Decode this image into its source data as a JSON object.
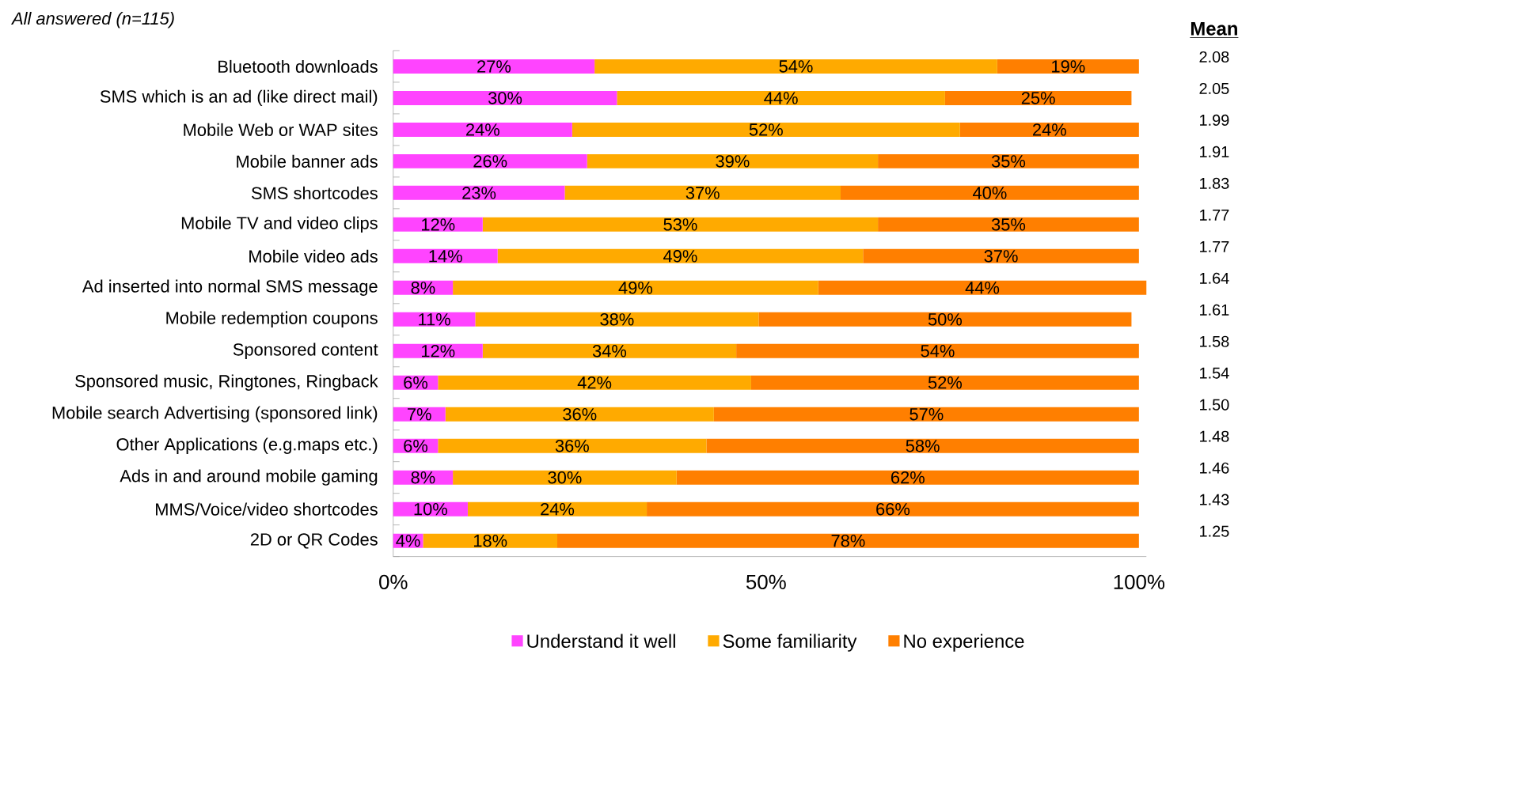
{
  "chart_data": {
    "type": "bar",
    "orientation": "horizontal",
    "stacked": true,
    "subtitle": "All answered (n=115)",
    "categories": [
      "Bluetooth downloads",
      "SMS which is an ad (like direct mail)",
      "Mobile Web or WAP sites",
      "Mobile banner ads",
      "SMS shortcodes",
      "Mobile TV and video clips",
      "Mobile video ads",
      "Ad inserted into normal SMS message",
      "Mobile redemption coupons",
      "Sponsored content",
      "Sponsored music, Ringtones, Ringback",
      "Mobile search Advertising (sponsored link)",
      "Other Applications (e.g.maps etc.)",
      "Ads in and around mobile gaming",
      "MMS/Voice/video shortcodes",
      "2D or QR Codes"
    ],
    "series": [
      {
        "name": "Understand it well",
        "color": "#ff44ff",
        "values": [
          27,
          30,
          24,
          26,
          23,
          12,
          14,
          8,
          11,
          12,
          6,
          7,
          6,
          8,
          10,
          4
        ],
        "value_labels": [
          "27%",
          "30%",
          "24%",
          "26%",
          "23%",
          "12%",
          "14%",
          "8%",
          "11%",
          "12%",
          "6%",
          "7%",
          "6%",
          "8%",
          "10%",
          "4%"
        ]
      },
      {
        "name": "Some familiarity",
        "color": "#ffaa00",
        "values": [
          54,
          44,
          52,
          39,
          37,
          53,
          49,
          49,
          38,
          34,
          42,
          36,
          36,
          30,
          24,
          18
        ],
        "value_labels": [
          "54%",
          "44%",
          "52%",
          "39%",
          "37%",
          "53%",
          "49%",
          "49%",
          "38%",
          "34%",
          "42%",
          "36%",
          "36%",
          "30%",
          "24%",
          "18%"
        ]
      },
      {
        "name": "No experience",
        "color": "#ff7f00",
        "values": [
          19,
          25,
          24,
          35,
          40,
          35,
          37,
          44,
          50,
          54,
          52,
          57,
          58,
          62,
          66,
          78
        ],
        "value_labels": [
          "19%",
          "25%",
          "24%",
          "35%",
          "40%",
          "35%",
          "37%",
          "44%",
          "50%",
          "54%",
          "52%",
          "57%",
          "58%",
          "62%",
          "66%",
          "78%"
        ]
      }
    ],
    "xlim": [
      0,
      101
    ],
    "xticks": [
      {
        "value": 0,
        "label": "0%"
      },
      {
        "value": 50,
        "label": "50%"
      },
      {
        "value": 100,
        "label": "100%"
      }
    ],
    "annotations": [
      "Mean",
      "2.08",
      "2.05",
      "1.99",
      "1.91",
      "1.83",
      "1.77",
      "1.77",
      "1.64",
      "1.61",
      "1.58",
      "1.54",
      "1.50",
      "1.48",
      "1.46",
      "1.43",
      "1.25"
    ],
    "legend": "bottom",
    "grid": false
  }
}
